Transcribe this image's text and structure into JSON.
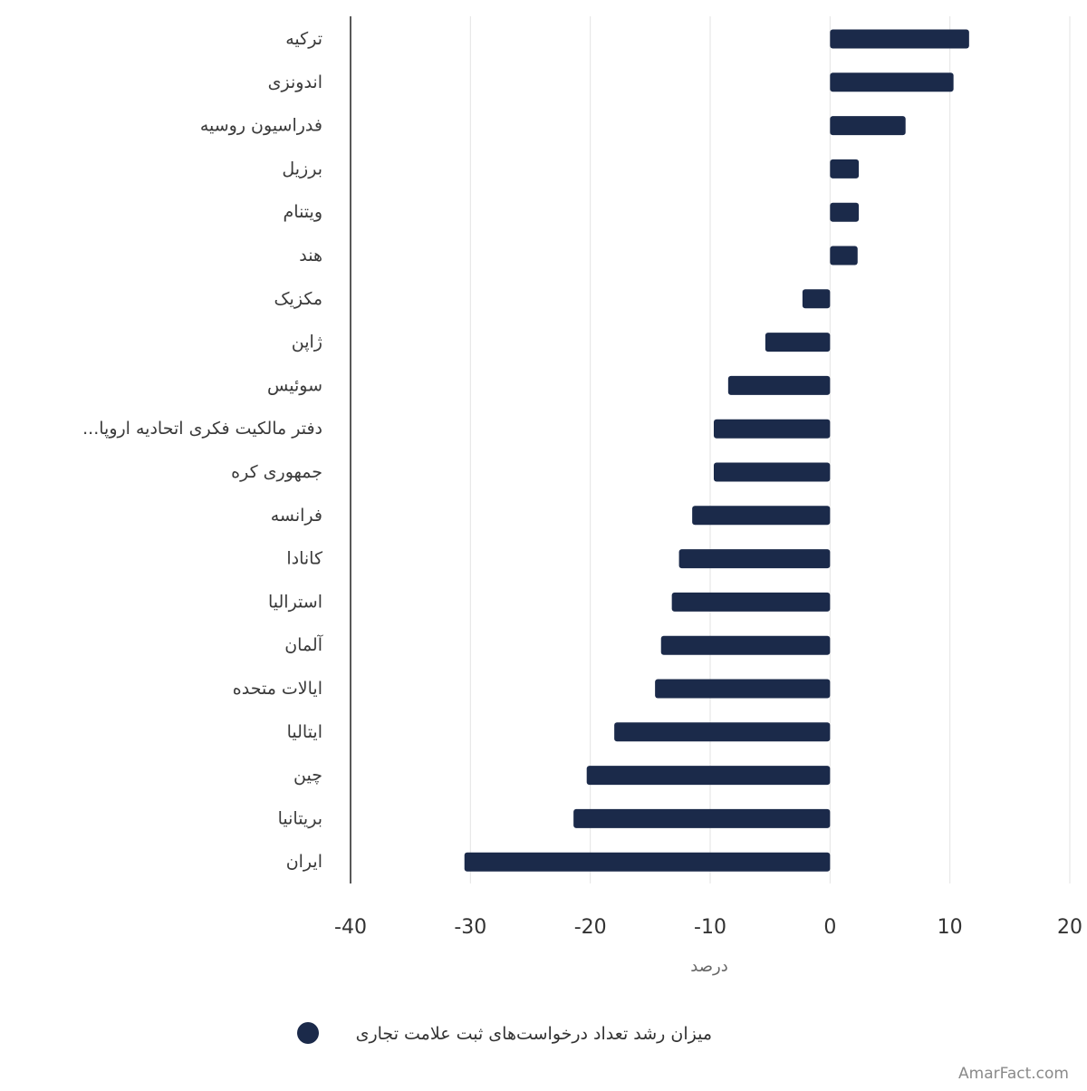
{
  "chart_data": {
    "type": "bar",
    "orientation": "horizontal",
    "categories": [
      "ترکیه",
      "اندونزی",
      "فدراسیون روسیه",
      "برزیل",
      "ویتنام",
      "هند",
      "مکزیک",
      "ژاپن",
      "سوئیس",
      "...دفتر مالکیت فکری اتحادیه اروپا",
      "جمهوری کره",
      "فرانسه",
      "کانادا",
      "استرالیا",
      "آلمان",
      "ایالات متحده",
      "ایتالیا",
      "چین",
      "بریتانیا",
      "ایران"
    ],
    "series": [
      {
        "name": "میزان رشد تعداد درخواست‌های ثبت علامت تجاری",
        "color": "#1b2a4a",
        "values": [
          11.6,
          10.3,
          6.3,
          2.4,
          2.4,
          2.3,
          -2.3,
          -5.4,
          -8.5,
          -9.7,
          -9.7,
          -11.5,
          -12.6,
          -13.2,
          -14.1,
          -14.6,
          -18.0,
          -20.3,
          -21.4,
          -30.5
        ]
      }
    ],
    "xlim": [
      -40,
      20
    ],
    "xticks": [
      "-40",
      "-30",
      "-20",
      "-10",
      "0",
      "10",
      "20"
    ],
    "xlabel": "درصد",
    "grid": true,
    "legend_position": "bottom"
  },
  "watermark": "AmarFact.com"
}
